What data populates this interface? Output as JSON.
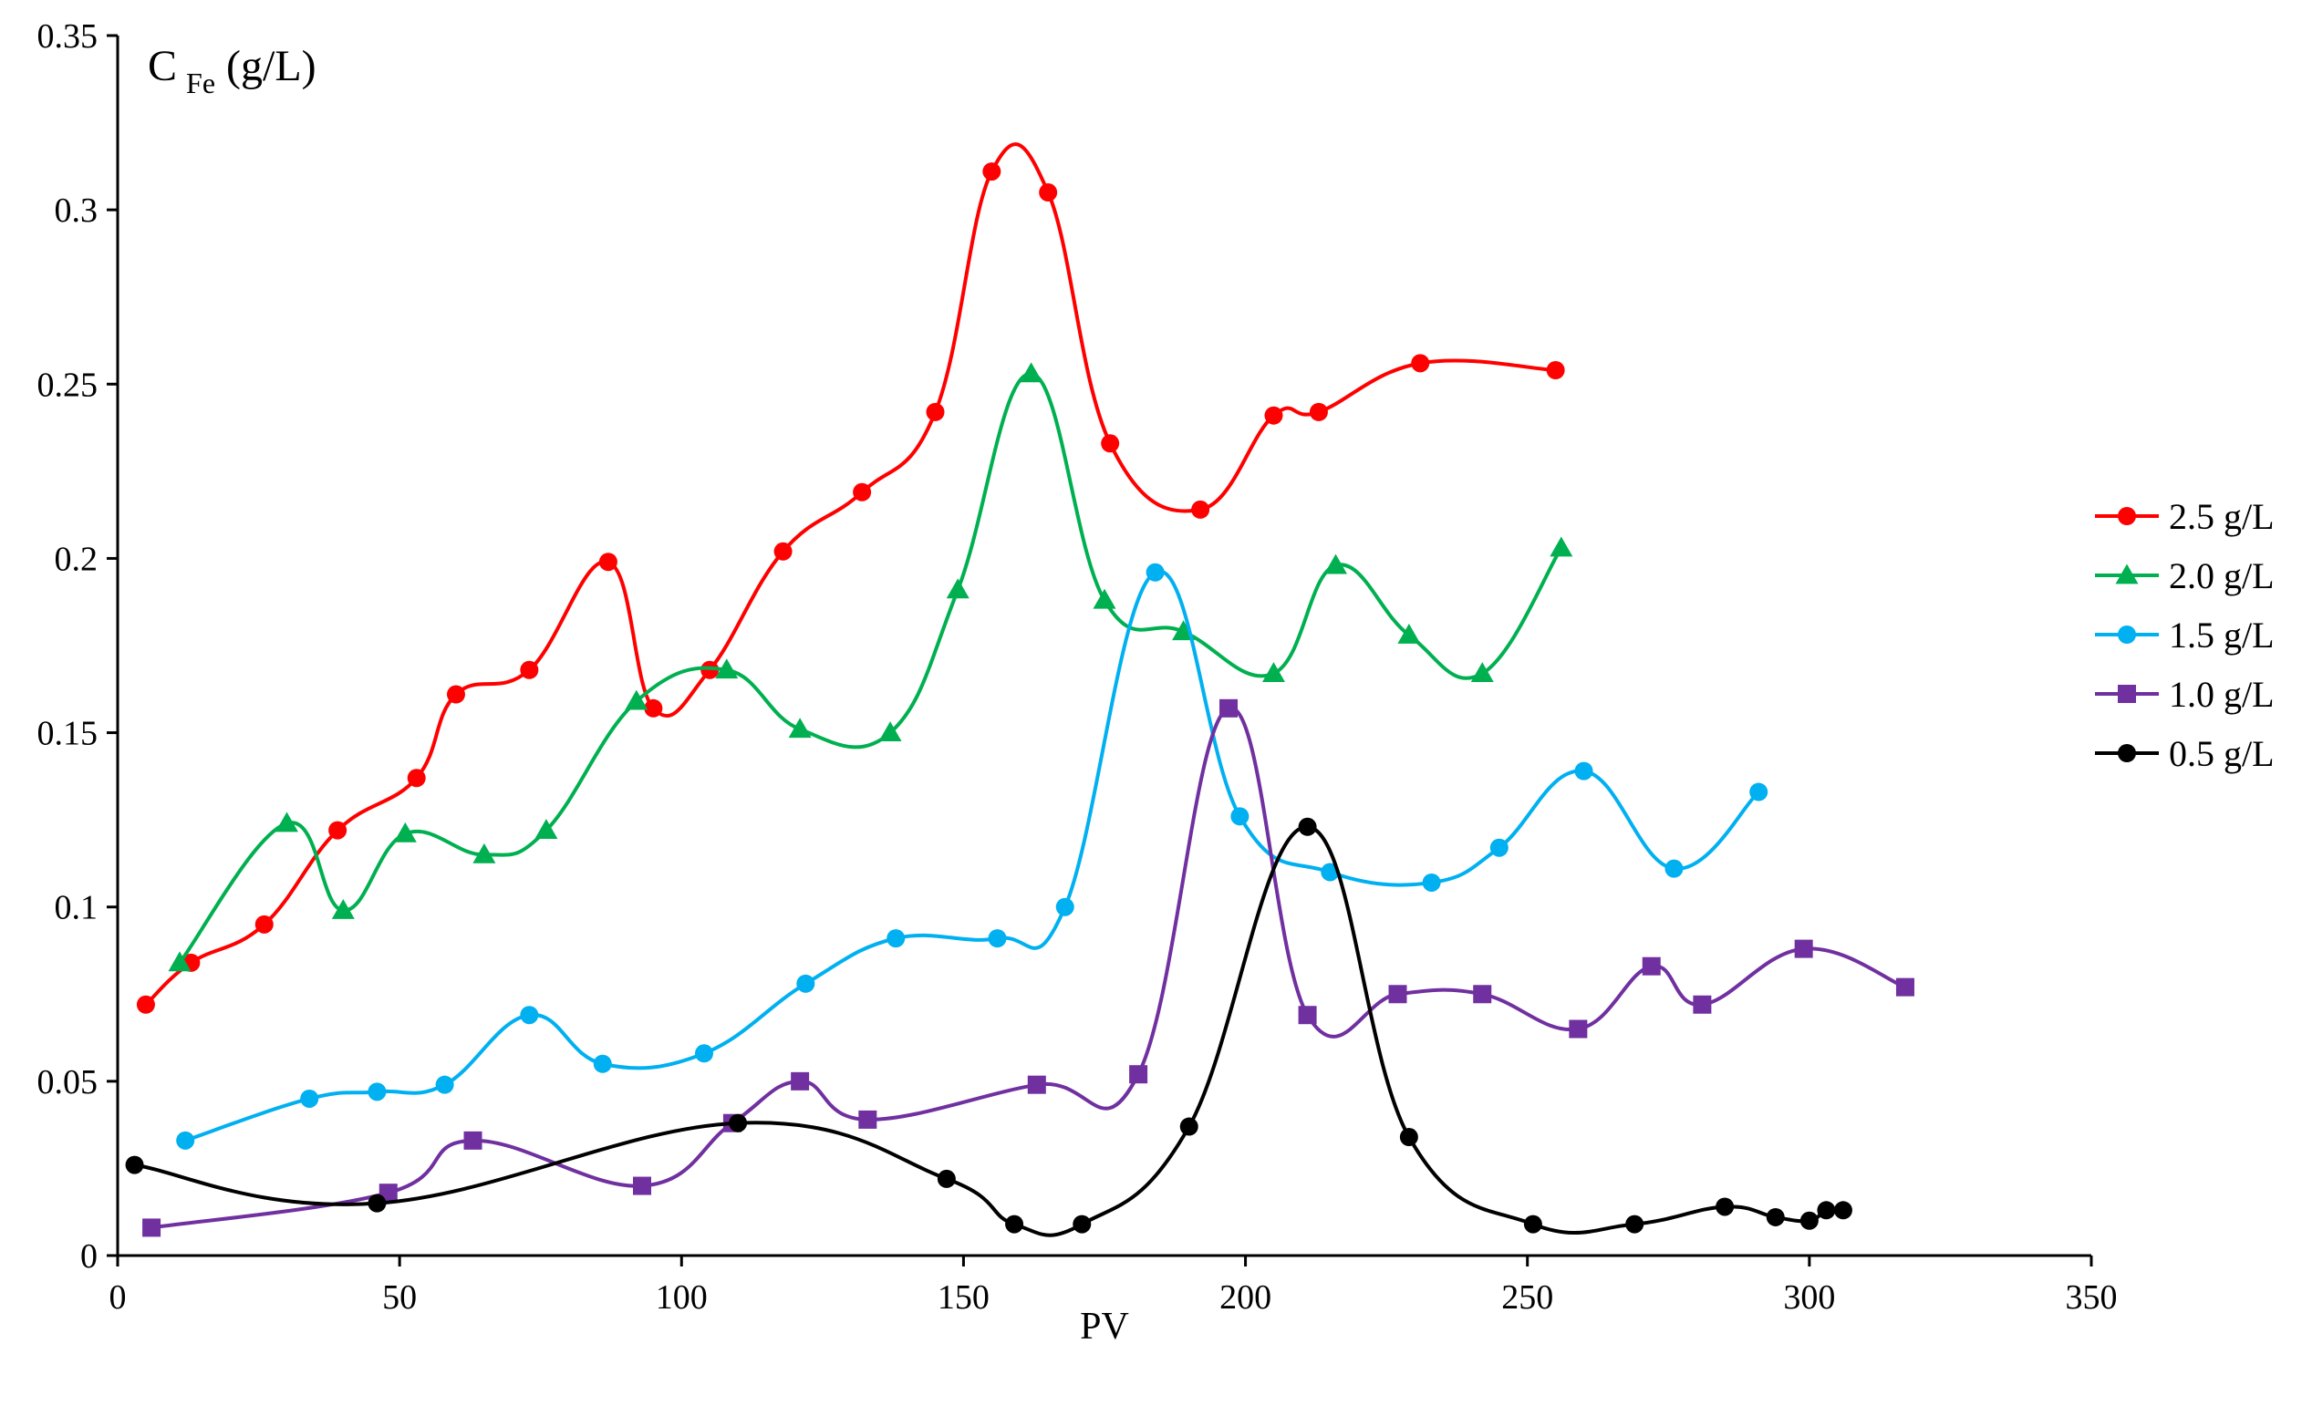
{
  "chart_data": {
    "type": "line",
    "title": "",
    "xlabel": "PV",
    "ylabel": "C",
    "ylabel_subscript": "Fe",
    "ylabel_unit": "(g/L)",
    "xlim": [
      0,
      350
    ],
    "ylim": [
      0,
      0.35
    ],
    "x_ticks": [
      "0",
      "50",
      "100",
      "150",
      "200",
      "250",
      "300",
      "350"
    ],
    "y_ticks": [
      "0",
      "0.05",
      "0.1",
      "0.15",
      "0.2",
      "0.25",
      "0.3",
      "0.35"
    ],
    "grid": false,
    "legend_position": "right",
    "series": [
      {
        "name": "2.5 g/L",
        "color": "#ff0000",
        "marker": "circle",
        "x": [
          5,
          13,
          26,
          39,
          53,
          60,
          73,
          87,
          95,
          105,
          118,
          132,
          145,
          155,
          165,
          176,
          192,
          205,
          213,
          231,
          255
        ],
        "y": [
          0.072,
          0.084,
          0.095,
          0.122,
          0.137,
          0.161,
          0.168,
          0.199,
          0.157,
          0.168,
          0.202,
          0.219,
          0.242,
          0.311,
          0.305,
          0.233,
          0.214,
          0.241,
          0.242,
          0.256,
          0.254
        ]
      },
      {
        "name": "2.0 g/L",
        "color": "#00b050",
        "marker": "triangle",
        "x": [
          11,
          30,
          40,
          51,
          65,
          76,
          92,
          108,
          121,
          137,
          149,
          162,
          175,
          189,
          205,
          216,
          229,
          242,
          256
        ],
        "y": [
          0.084,
          0.124,
          0.099,
          0.121,
          0.115,
          0.122,
          0.159,
          0.168,
          0.151,
          0.15,
          0.191,
          0.253,
          0.188,
          0.179,
          0.167,
          0.198,
          0.178,
          0.167,
          0.203
        ]
      },
      {
        "name": "1.5 g/L",
        "color": "#00b0f0",
        "marker": "circle",
        "x": [
          12,
          34,
          46,
          58,
          73,
          86,
          104,
          122,
          138,
          156,
          168,
          184,
          199,
          215,
          233,
          245,
          260,
          276,
          291
        ],
        "y": [
          0.033,
          0.045,
          0.047,
          0.049,
          0.069,
          0.055,
          0.058,
          0.078,
          0.091,
          0.091,
          0.1,
          0.196,
          0.126,
          0.11,
          0.107,
          0.117,
          0.139,
          0.111,
          0.133
        ]
      },
      {
        "name": "1.0 g/L",
        "color": "#7030a0",
        "marker": "square",
        "x": [
          6,
          48,
          63,
          93,
          109,
          121,
          133,
          163,
          181,
          197,
          211,
          227,
          242,
          259,
          272,
          281,
          299,
          317
        ],
        "y": [
          0.008,
          0.018,
          0.033,
          0.02,
          0.038,
          0.05,
          0.039,
          0.049,
          0.052,
          0.157,
          0.069,
          0.075,
          0.075,
          0.065,
          0.083,
          0.072,
          0.088,
          0.077
        ]
      },
      {
        "name": "0.5 g/L",
        "color": "#000000",
        "marker": "circle",
        "x": [
          3,
          46,
          110,
          147,
          159,
          171,
          190,
          211,
          229,
          251,
          269,
          285,
          294,
          300,
          303,
          306
        ],
        "y": [
          0.026,
          0.015,
          0.038,
          0.022,
          0.009,
          0.009,
          0.037,
          0.123,
          0.034,
          0.009,
          0.009,
          0.014,
          0.011,
          0.01,
          0.013,
          0.013
        ]
      }
    ]
  }
}
